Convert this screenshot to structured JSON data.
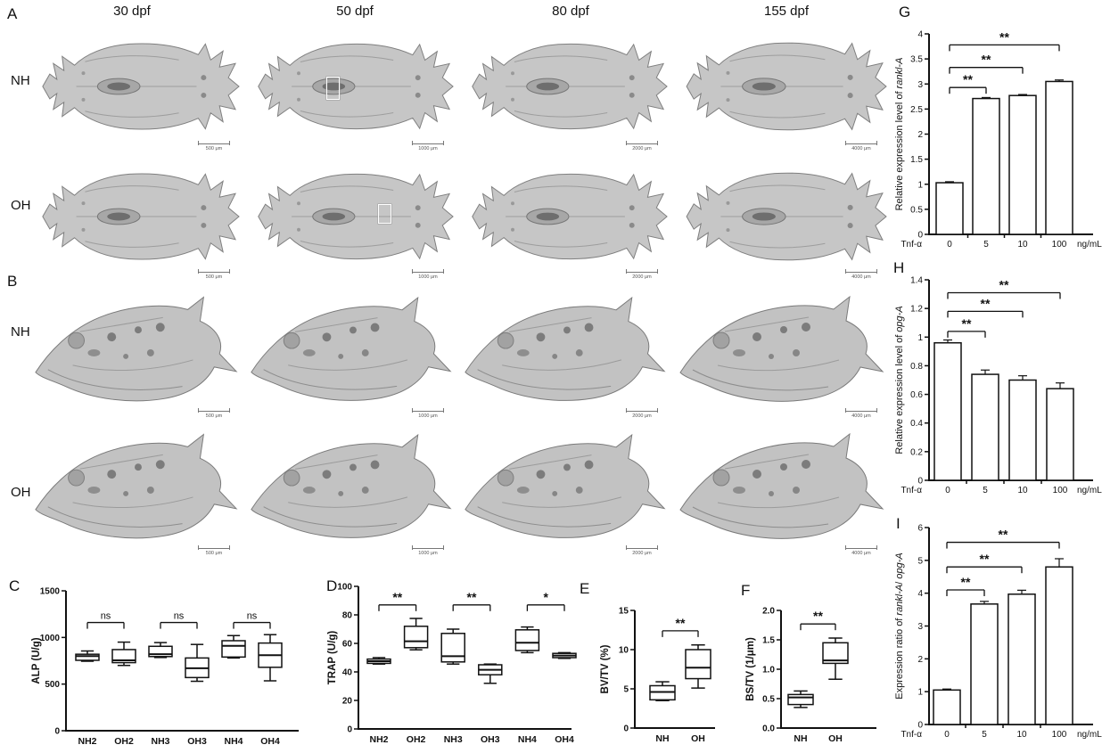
{
  "microct": {
    "section_a": {
      "letter": "A",
      "view": "dorsal-skull-microct",
      "rows": [
        {
          "label": "NH"
        },
        {
          "label": "OH"
        }
      ]
    },
    "section_b": {
      "letter": "B",
      "view": "lateral-skull-microct",
      "rows": [
        {
          "label": "NH"
        },
        {
          "label": "OH"
        }
      ]
    },
    "columns": [
      {
        "label": "30 dpf",
        "scale_bar": "500 μm"
      },
      {
        "label": "50 dpf",
        "scale_bar": "1000 μm"
      },
      {
        "label": "80 dpf",
        "scale_bar": "2000 μm"
      },
      {
        "label": "155 dpf",
        "scale_bar": "4000 μm"
      }
    ],
    "highlight_boxes": [
      {
        "section": "A",
        "row": "NH",
        "column": "50 dpf"
      },
      {
        "section": "A",
        "row": "OH",
        "column": "50 dpf"
      }
    ]
  },
  "chart_data": [
    {
      "id": "C",
      "letter": "C",
      "type": "box",
      "ylabel": "ALP (U/g)",
      "ylim": [
        0,
        1500
      ],
      "yticks": [
        0,
        500,
        1000,
        1500
      ],
      "categories": [
        "NH2",
        "OH2",
        "NH3",
        "OH3",
        "NH4",
        "OH4"
      ],
      "boxes": [
        {
          "low": 745,
          "q1": 755,
          "median": 800,
          "q3": 820,
          "high": 855
        },
        {
          "low": 700,
          "q1": 730,
          "median": 755,
          "q3": 870,
          "high": 950
        },
        {
          "low": 785,
          "q1": 795,
          "median": 820,
          "q3": 905,
          "high": 945
        },
        {
          "low": 530,
          "q1": 570,
          "median": 670,
          "q3": 780,
          "high": 925
        },
        {
          "low": 780,
          "q1": 790,
          "median": 910,
          "q3": 965,
          "high": 1020
        },
        {
          "low": 535,
          "q1": 680,
          "median": 810,
          "q3": 940,
          "high": 1030
        }
      ],
      "significance": [
        {
          "from": 0,
          "to": 1,
          "label": "ns",
          "y": 1160
        },
        {
          "from": 2,
          "to": 3,
          "label": "ns",
          "y": 1160
        },
        {
          "from": 4,
          "to": 5,
          "label": "ns",
          "y": 1160
        }
      ]
    },
    {
      "id": "D",
      "letter": "D",
      "type": "box",
      "ylabel": "TRAP (U/g)",
      "ylim": [
        0,
        100
      ],
      "yticks": [
        0,
        20,
        40,
        60,
        80,
        100
      ],
      "categories": [
        "NH2",
        "OH2",
        "NH3",
        "OH3",
        "NH4",
        "OH4"
      ],
      "boxes": [
        {
          "low": 45.5,
          "q1": 46,
          "median": 47.5,
          "q3": 49,
          "high": 50
        },
        {
          "low": 55.5,
          "q1": 57,
          "median": 61.5,
          "q3": 72,
          "high": 77.5
        },
        {
          "low": 45.5,
          "q1": 47,
          "median": 51,
          "q3": 67,
          "high": 70
        },
        {
          "low": 32,
          "q1": 38,
          "median": 41.5,
          "q3": 45,
          "high": 45.5
        },
        {
          "low": 53.5,
          "q1": 55,
          "median": 60.5,
          "q3": 69.5,
          "high": 71.5
        },
        {
          "low": 49.5,
          "q1": 50,
          "median": 51.5,
          "q3": 53,
          "high": 53.5
        }
      ],
      "significance": [
        {
          "from": 0,
          "to": 1,
          "label": "**",
          "y": 87
        },
        {
          "from": 2,
          "to": 3,
          "label": "**",
          "y": 87
        },
        {
          "from": 4,
          "to": 5,
          "label": "*",
          "y": 87
        }
      ]
    },
    {
      "id": "E",
      "letter": "E",
      "type": "box",
      "ylabel": "BV/TV (%)",
      "ylim": [
        0,
        15
      ],
      "yticks": [
        0,
        5,
        10,
        15
      ],
      "categories": [
        "NH",
        "OH"
      ],
      "boxes": [
        {
          "low": 3.5,
          "q1": 3.6,
          "median": 4.6,
          "q3": 5.4,
          "high": 5.9
        },
        {
          "low": 5.1,
          "q1": 6.3,
          "median": 7.7,
          "q3": 10.0,
          "high": 10.6
        }
      ],
      "significance": [
        {
          "from": 0,
          "to": 1,
          "label": "**",
          "y": 12.4
        }
      ]
    },
    {
      "id": "F",
      "letter": "F",
      "type": "box",
      "ylabel": "BS/TV (1/μm)",
      "ylim": [
        0,
        2
      ],
      "yticks": [
        0,
        0.5,
        1,
        1.5,
        2
      ],
      "ydecimals": 1,
      "categories": [
        "NH",
        "OH"
      ],
      "boxes": [
        {
          "low": 0.35,
          "q1": 0.4,
          "median": 0.52,
          "q3": 0.57,
          "high": 0.63
        },
        {
          "low": 0.83,
          "q1": 1.1,
          "median": 1.15,
          "q3": 1.45,
          "high": 1.53
        }
      ],
      "significance": [
        {
          "from": 0,
          "to": 1,
          "label": "**",
          "y": 1.77
        }
      ]
    },
    {
      "id": "G",
      "letter": "G",
      "type": "bar",
      "ylabel_segments": [
        {
          "text": "Relative expression level of "
        },
        {
          "text": "rankl-A",
          "italic": true
        }
      ],
      "ylim": [
        0,
        4
      ],
      "yticks": [
        0,
        0.5,
        1,
        1.5,
        2,
        2.5,
        3,
        3.5,
        4
      ],
      "categories": [
        "0",
        "5",
        "10",
        "100"
      ],
      "values": [
        1.03,
        2.71,
        2.77,
        3.05
      ],
      "errors": [
        0.02,
        0.02,
        0.02,
        0.03
      ],
      "x_prefix": "Tnf-α",
      "x_suffix": "ng/mL",
      "significance": [
        {
          "from": 0,
          "to": 1,
          "label": "**",
          "y": 2.93
        },
        {
          "from": 0,
          "to": 2,
          "label": "**",
          "y": 3.33
        },
        {
          "from": 0,
          "to": 3,
          "label": "**",
          "y": 3.78
        }
      ]
    },
    {
      "id": "H",
      "letter": "H",
      "type": "bar",
      "ylabel_segments": [
        {
          "text": "Relative expression level of "
        },
        {
          "text": "opg-A",
          "italic": true
        }
      ],
      "ylim": [
        0,
        1.4
      ],
      "yticks": [
        0,
        0.2,
        0.4,
        0.6,
        0.8,
        1,
        1.2,
        1.4
      ],
      "categories": [
        "0",
        "5",
        "10",
        "100"
      ],
      "values": [
        0.96,
        0.74,
        0.7,
        0.64
      ],
      "errors": [
        0.02,
        0.03,
        0.03,
        0.04
      ],
      "x_prefix": "Tnf-α",
      "x_suffix": "ng/mL",
      "significance": [
        {
          "from": 0,
          "to": 1,
          "label": "**",
          "y": 1.04
        },
        {
          "from": 0,
          "to": 2,
          "label": "**",
          "y": 1.18
        },
        {
          "from": 0,
          "to": 3,
          "label": "**",
          "y": 1.31
        }
      ]
    },
    {
      "id": "I",
      "letter": "I",
      "type": "bar",
      "ylabel_segments": [
        {
          "text": "Expression ratio of "
        },
        {
          "text": "rankl-A",
          "italic": true
        },
        {
          "text": "/ "
        },
        {
          "text": "opg-A",
          "italic": true
        }
      ],
      "ylim": [
        0,
        6
      ],
      "yticks": [
        0,
        1,
        2,
        3,
        4,
        5,
        6
      ],
      "categories": [
        "0",
        "5",
        "10",
        "100"
      ],
      "values": [
        1.05,
        3.67,
        3.97,
        4.8
      ],
      "errors": [
        0.03,
        0.08,
        0.12,
        0.25
      ],
      "x_prefix": "Tnf-α",
      "x_suffix": "ng/mL",
      "significance": [
        {
          "from": 0,
          "to": 1,
          "label": "**",
          "y": 4.1
        },
        {
          "from": 0,
          "to": 2,
          "label": "**",
          "y": 4.8
        },
        {
          "from": 0,
          "to": 3,
          "label": "**",
          "y": 5.55
        }
      ]
    }
  ]
}
